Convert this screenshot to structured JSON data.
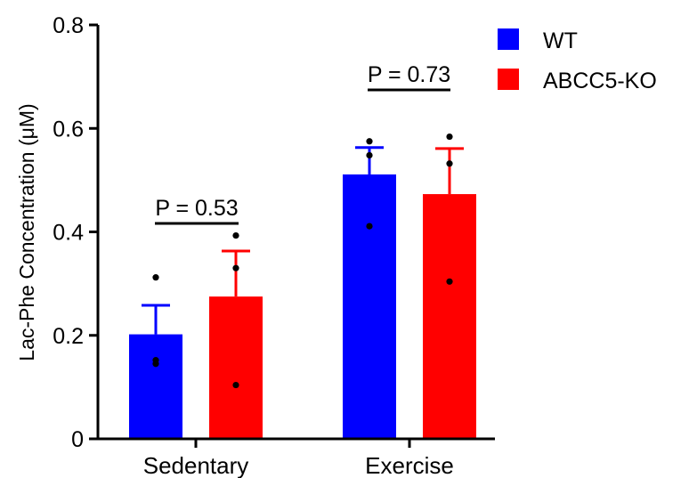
{
  "chart_data": {
    "type": "bar",
    "title": "",
    "xlabel": "",
    "ylabel": "Lac-Phe Concentration (μM)",
    "ylim": [
      0,
      0.8
    ],
    "yticks": [
      0,
      0.2,
      0.4,
      0.6,
      0.8
    ],
    "ytick_labels": [
      "0",
      "0.2",
      "0.4",
      "0.6",
      "0.8"
    ],
    "grid": false,
    "legend_position": "top-right",
    "categories": [
      "Sedentary",
      "Exercise"
    ],
    "series": [
      {
        "name": "WT",
        "color": "#0000ff",
        "values": [
          0.202,
          0.511
        ],
        "error": [
          0.056,
          0.052
        ],
        "points": [
          [
            0.312,
            0.152,
            0.145
          ],
          [
            0.575,
            0.548,
            0.411
          ]
        ]
      },
      {
        "name": "ABCC5-KO",
        "color": "#ff0000",
        "values": [
          0.275,
          0.473
        ],
        "error": [
          0.088,
          0.088
        ],
        "points": [
          [
            0.393,
            0.33,
            0.104
          ],
          [
            0.584,
            0.532,
            0.304
          ]
        ]
      }
    ],
    "annotations": [
      {
        "text": "P = 0.53",
        "category_index": 0
      },
      {
        "text": "P = 0.73",
        "category_index": 1
      }
    ]
  }
}
